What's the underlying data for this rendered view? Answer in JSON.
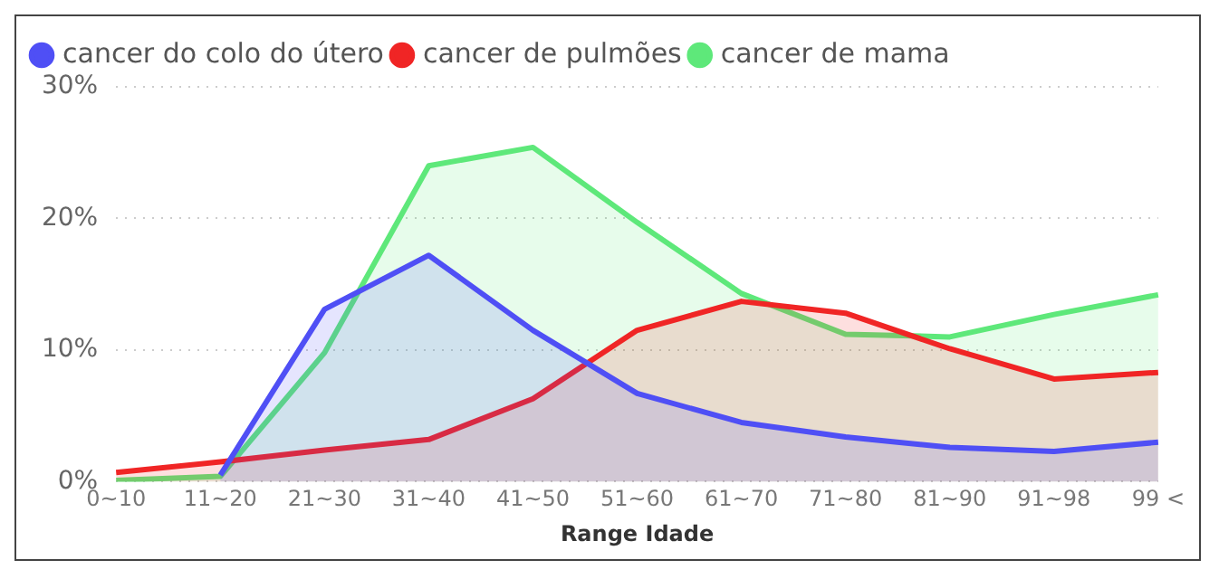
{
  "chart_data": {
    "type": "area",
    "xlabel": "Range Idade",
    "categories": [
      "0~10",
      "11~20",
      "21~30",
      "31~40",
      "41~50",
      "51~60",
      "61~70",
      "71~80",
      "81~90",
      "91~98",
      "99 <"
    ],
    "series": [
      {
        "name": "cancer do colo do útero",
        "color": "#4f4ff5",
        "values": [
          null,
          0.5,
          13.1,
          17.2,
          11.5,
          6.7,
          4.5,
          3.4,
          2.6,
          2.3,
          3.0
        ]
      },
      {
        "name": "cancer de pulmões",
        "color": "#f02525",
        "values": [
          0.7,
          1.5,
          2.4,
          3.2,
          6.3,
          11.5,
          13.7,
          12.8,
          10.1,
          7.8,
          8.3
        ]
      },
      {
        "name": "cancer de mama",
        "color": "#5ee87a",
        "values": [
          0.1,
          0.4,
          9.8,
          24.0,
          25.4,
          19.7,
          14.3,
          11.2,
          11.0,
          12.7,
          14.2
        ]
      }
    ],
    "ylim": [
      0,
      30
    ],
    "yticks": [
      {
        "value": 0,
        "label": "0%"
      },
      {
        "value": 10,
        "label": "10%"
      },
      {
        "value": 20,
        "label": "20%"
      },
      {
        "value": 30,
        "label": "30%"
      }
    ],
    "grid": "y",
    "legend": "top left",
    "marker": "none",
    "line_style": "solid"
  }
}
